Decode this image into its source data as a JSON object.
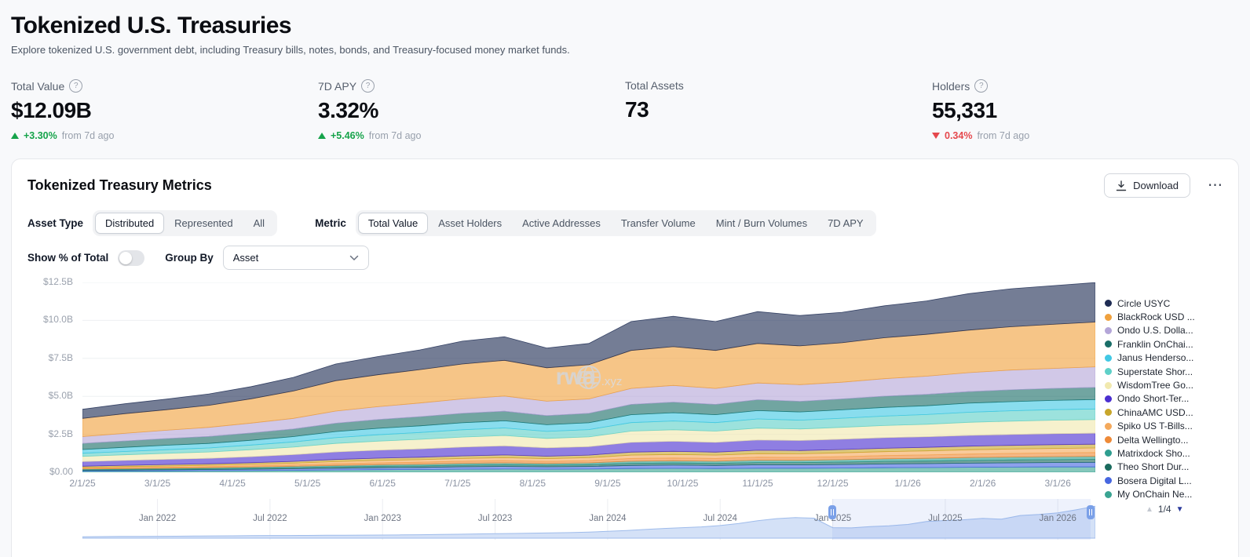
{
  "page": {
    "title": "Tokenized U.S. Treasuries",
    "subtitle": "Explore tokenized U.S. government debt, including Treasury bills, notes, bonds, and Treasury-focused money market funds."
  },
  "colors": {
    "positive": "#16a34a",
    "negative": "#e5484d",
    "accent": "#7aa0e8"
  },
  "stats": [
    {
      "label": "Total Value",
      "has_help": true,
      "value": "$12.09B",
      "delta": "+3.30%",
      "delta_dir": "up",
      "delta_suffix": "from 7d ago"
    },
    {
      "label": "7D APY",
      "has_help": true,
      "value": "3.32%",
      "delta": "+5.46%",
      "delta_dir": "up",
      "delta_suffix": "from 7d ago"
    },
    {
      "label": "Total Assets",
      "has_help": false,
      "value": "73",
      "delta": "",
      "delta_dir": "none",
      "delta_suffix": ""
    },
    {
      "label": "Holders",
      "has_help": true,
      "value": "55,331",
      "delta": "0.34%",
      "delta_dir": "down",
      "delta_suffix": "from 7d ago"
    }
  ],
  "card": {
    "title": "Tokenized Treasury Metrics",
    "download_label": "Download",
    "more_menu": "⋯",
    "asset_type_label": "Asset Type",
    "asset_type_options": [
      "Distributed",
      "Represented",
      "All"
    ],
    "asset_type_selected": "Distributed",
    "metric_label": "Metric",
    "metric_options": [
      "Total Value",
      "Asset Holders",
      "Active Addresses",
      "Transfer Volume",
      "Mint / Burn Volumes",
      "7D APY"
    ],
    "metric_selected": "Total Value",
    "show_pct_label": "Show % of Total",
    "show_pct_on": false,
    "group_by_label": "Group By",
    "group_by_value": "Asset"
  },
  "chart_data": {
    "type": "area",
    "stacked": true,
    "unit": "USD billions",
    "ylim": [
      0,
      12.5
    ],
    "y_ticks": [
      {
        "label": "$12.5B",
        "v": 12.5
      },
      {
        "label": "$10.0B",
        "v": 10
      },
      {
        "label": "$7.5B",
        "v": 7.5
      },
      {
        "label": "$5.0B",
        "v": 5
      },
      {
        "label": "$2.5B",
        "v": 2.5
      },
      {
        "label": "$0.00",
        "v": 0
      }
    ],
    "x_span_months": 13.5,
    "x_ticks": [
      {
        "label": "2/1/25",
        "m": 0
      },
      {
        "label": "3/1/25",
        "m": 1
      },
      {
        "label": "4/1/25",
        "m": 2
      },
      {
        "label": "5/1/25",
        "m": 3
      },
      {
        "label": "6/1/25",
        "m": 4
      },
      {
        "label": "7/1/25",
        "m": 5
      },
      {
        "label": "8/1/25",
        "m": 6
      },
      {
        "label": "9/1/25",
        "m": 7
      },
      {
        "label": "10/1/25",
        "m": 8
      },
      {
        "label": "11/1/25",
        "m": 9
      },
      {
        "label": "12/1/25",
        "m": 10
      },
      {
        "label": "1/1/26",
        "m": 11
      },
      {
        "label": "2/1/26",
        "m": 12
      },
      {
        "label": "3/1/26",
        "m": 13
      }
    ],
    "series": [
      {
        "name": "Circle USYC",
        "color": "#1f2d54",
        "values": [
          0.6,
          0.65,
          0.7,
          0.75,
          0.8,
          0.9,
          1.1,
          1.2,
          1.3,
          1.5,
          1.55,
          1.3,
          1.4,
          1.9,
          2.0,
          1.9,
          2.1,
          2.0,
          2.0,
          2.1,
          2.2,
          2.4,
          2.5,
          2.55,
          2.6
        ]
      },
      {
        "name": "BlackRock USD ...",
        "color": "#f0a13e",
        "values": [
          1.2,
          1.3,
          1.35,
          1.45,
          1.6,
          1.8,
          2.0,
          2.1,
          2.2,
          2.3,
          2.35,
          2.2,
          2.25,
          2.5,
          2.55,
          2.5,
          2.6,
          2.55,
          2.6,
          2.7,
          2.75,
          2.8,
          2.85,
          2.9,
          2.95
        ]
      },
      {
        "name": "Ondo U.S. Dolla...",
        "color": "#b4a6d8",
        "values": [
          0.45,
          0.5,
          0.55,
          0.6,
          0.65,
          0.7,
          0.8,
          0.85,
          0.9,
          0.95,
          1.0,
          0.95,
          0.95,
          1.05,
          1.1,
          1.05,
          1.1,
          1.1,
          1.1,
          1.15,
          1.2,
          1.25,
          1.3,
          1.32,
          1.35
        ]
      },
      {
        "name": "Franklin OnChai...",
        "color": "#1a6e68",
        "values": [
          0.4,
          0.42,
          0.44,
          0.46,
          0.48,
          0.5,
          0.55,
          0.58,
          0.6,
          0.62,
          0.63,
          0.6,
          0.62,
          0.68,
          0.7,
          0.68,
          0.72,
          0.7,
          0.72,
          0.74,
          0.75,
          0.76,
          0.78,
          0.79,
          0.8
        ]
      },
      {
        "name": "Janus Henderso...",
        "color": "#41c8e4",
        "values": [
          0.25,
          0.27,
          0.29,
          0.3,
          0.32,
          0.35,
          0.4,
          0.42,
          0.44,
          0.46,
          0.47,
          0.44,
          0.45,
          0.52,
          0.54,
          0.52,
          0.55,
          0.54,
          0.55,
          0.57,
          0.58,
          0.6,
          0.6,
          0.61,
          0.62
        ]
      },
      {
        "name": "Superstate Shor...",
        "color": "#5fd0c8",
        "values": [
          0.2,
          0.22,
          0.24,
          0.26,
          0.3,
          0.34,
          0.38,
          0.42,
          0.45,
          0.48,
          0.5,
          0.46,
          0.48,
          0.56,
          0.58,
          0.56,
          0.6,
          0.58,
          0.6,
          0.62,
          0.64,
          0.66,
          0.68,
          0.69,
          0.7
        ]
      },
      {
        "name": "WisdomTree Go...",
        "color": "#f1e9af",
        "values": [
          0.35,
          0.37,
          0.4,
          0.42,
          0.46,
          0.5,
          0.56,
          0.6,
          0.63,
          0.66,
          0.68,
          0.62,
          0.64,
          0.74,
          0.76,
          0.74,
          0.78,
          0.76,
          0.78,
          0.8,
          0.82,
          0.86,
          0.88,
          0.89,
          0.9
        ]
      },
      {
        "name": "Ondo Short-Ter...",
        "color": "#4b2fd0",
        "values": [
          0.3,
          0.32,
          0.34,
          0.36,
          0.4,
          0.44,
          0.5,
          0.52,
          0.55,
          0.58,
          0.6,
          0.55,
          0.56,
          0.64,
          0.66,
          0.64,
          0.68,
          0.66,
          0.68,
          0.7,
          0.7,
          0.71,
          0.72,
          0.72,
          0.72
        ]
      },
      {
        "name": "ChinaAMC USD...",
        "color": "#c8a62b",
        "values": [
          0.08,
          0.09,
          0.1,
          0.1,
          0.11,
          0.12,
          0.14,
          0.15,
          0.16,
          0.17,
          0.18,
          0.16,
          0.17,
          0.2,
          0.21,
          0.2,
          0.22,
          0.21,
          0.22,
          0.22,
          0.23,
          0.24,
          0.24,
          0.25,
          0.25
        ]
      },
      {
        "name": "Spiko US T-Bills...",
        "color": "#f4a95c",
        "values": [
          0.06,
          0.07,
          0.08,
          0.09,
          0.1,
          0.12,
          0.14,
          0.16,
          0.17,
          0.18,
          0.19,
          0.18,
          0.19,
          0.22,
          0.23,
          0.22,
          0.24,
          0.24,
          0.25,
          0.26,
          0.27,
          0.28,
          0.29,
          0.3,
          0.3
        ]
      },
      {
        "name": "Delta Wellingto...",
        "color": "#ee8a38",
        "values": [
          0.05,
          0.06,
          0.06,
          0.07,
          0.08,
          0.09,
          0.11,
          0.12,
          0.13,
          0.14,
          0.15,
          0.14,
          0.15,
          0.18,
          0.18,
          0.18,
          0.19,
          0.19,
          0.2,
          0.21,
          0.22,
          0.23,
          0.24,
          0.24,
          0.25
        ]
      },
      {
        "name": "Matrixdock Sho...",
        "color": "#2f9e90",
        "values": [
          0.05,
          0.05,
          0.06,
          0.06,
          0.07,
          0.08,
          0.09,
          0.1,
          0.11,
          0.12,
          0.12,
          0.11,
          0.12,
          0.14,
          0.15,
          0.14,
          0.16,
          0.15,
          0.16,
          0.17,
          0.18,
          0.19,
          0.19,
          0.2,
          0.2
        ]
      },
      {
        "name": "Theo Short Dur...",
        "color": "#1b6b5e",
        "values": [
          0.04,
          0.05,
          0.05,
          0.06,
          0.07,
          0.08,
          0.09,
          0.1,
          0.1,
          0.11,
          0.12,
          0.11,
          0.12,
          0.14,
          0.14,
          0.14,
          0.15,
          0.15,
          0.16,
          0.17,
          0.17,
          0.18,
          0.19,
          0.19,
          0.2
        ]
      },
      {
        "name": "Bosera Digital L...",
        "color": "#4767e0",
        "values": [
          0.05,
          0.06,
          0.07,
          0.08,
          0.09,
          0.1,
          0.12,
          0.13,
          0.14,
          0.16,
          0.17,
          0.16,
          0.17,
          0.2,
          0.21,
          0.2,
          0.22,
          0.22,
          0.23,
          0.25,
          0.26,
          0.27,
          0.28,
          0.29,
          0.3
        ]
      },
      {
        "name": "My OnChain Ne...",
        "color": "#3aa492",
        "values": [
          0.07,
          0.08,
          0.09,
          0.1,
          0.11,
          0.13,
          0.15,
          0.17,
          0.18,
          0.2,
          0.21,
          0.2,
          0.21,
          0.25,
          0.26,
          0.25,
          0.27,
          0.27,
          0.28,
          0.3,
          0.31,
          0.33,
          0.34,
          0.35,
          0.35
        ]
      }
    ],
    "legend_page": "1/4",
    "watermark": {
      "brand": "rwa",
      "tld": ".xyz"
    },
    "brush": {
      "span_months": 54,
      "ymax": 12.5,
      "labels": [
        {
          "label": "Jan 2022",
          "m": 4
        },
        {
          "label": "Jul 2022",
          "m": 10
        },
        {
          "label": "Jan 2023",
          "m": 16
        },
        {
          "label": "Jul 2023",
          "m": 22
        },
        {
          "label": "Jan 2024",
          "m": 28
        },
        {
          "label": "Jul 2024",
          "m": 34
        },
        {
          "label": "Jan 2025",
          "m": 40
        },
        {
          "label": "Jul 2025",
          "m": 46
        },
        {
          "label": "Jan 2026",
          "m": 52
        }
      ],
      "values": [
        0.55,
        0.6,
        0.65,
        0.68,
        0.7,
        0.75,
        0.8,
        0.85,
        0.9,
        0.95,
        1.0,
        1.0,
        1.05,
        1.1,
        1.1,
        1.15,
        1.2,
        1.25,
        1.3,
        1.4,
        1.5,
        1.6,
        1.7,
        1.8,
        1.9,
        2.0,
        2.1,
        2.3,
        2.6,
        2.9,
        3.3,
        3.7,
        4.0,
        4.3,
        4.8,
        5.6,
        6.6,
        7.4,
        7.8,
        7.6,
        4.0,
        3.9,
        4.4,
        4.7,
        5.2,
        6.3,
        6.7,
        7.0,
        7.5,
        7.2,
        8.6,
        9.0,
        9.6,
        10.8,
        12.1
      ],
      "selection": [
        0.74,
        0.995
      ]
    }
  }
}
